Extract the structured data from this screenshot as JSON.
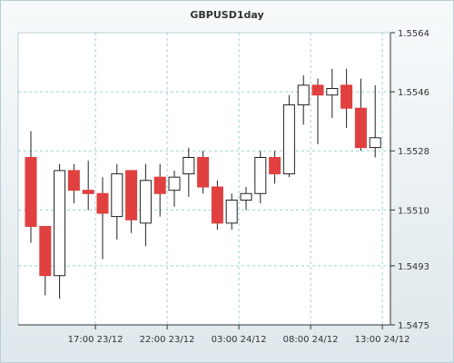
{
  "chart_data": {
    "type": "candlestick",
    "title": "GBPUSD1day",
    "xlabel": "",
    "ylabel": "",
    "ylim": [
      1.5475,
      1.5564
    ],
    "yticks": [
      "1.5564",
      "1.5546",
      "1.5528",
      "1.5510",
      "1.5493",
      "1.5475"
    ],
    "ytick_values": [
      1.5564,
      1.5546,
      1.5528,
      1.551,
      1.5493,
      1.5475
    ],
    "xticks": [
      {
        "label": "17:00 23/12",
        "index": 4.5
      },
      {
        "label": "22:00 23/12",
        "index": 9.5
      },
      {
        "label": "03:00 24/12",
        "index": 14.5
      },
      {
        "label": "08:00 24/12",
        "index": 19.5
      },
      {
        "label": "13:00 24/12",
        "index": 24.5
      }
    ],
    "grid": true,
    "colors": {
      "bear": "#e04040",
      "bull": "#ffffff",
      "outline": "#222222",
      "grid": "#9fd0d6"
    },
    "candles": [
      {
        "o": 1.5526,
        "h": 1.5534,
        "l": 1.55,
        "c": 1.5505
      },
      {
        "o": 1.5505,
        "h": 1.5505,
        "l": 1.5484,
        "c": 1.549
      },
      {
        "o": 1.549,
        "h": 1.5524,
        "l": 1.5483,
        "c": 1.5522
      },
      {
        "o": 1.5522,
        "h": 1.5524,
        "l": 1.5512,
        "c": 1.5516
      },
      {
        "o": 1.5516,
        "h": 1.5525,
        "l": 1.551,
        "c": 1.5515
      },
      {
        "o": 1.5515,
        "h": 1.552,
        "l": 1.5495,
        "c": 1.5509
      },
      {
        "o": 1.5508,
        "h": 1.5524,
        "l": 1.5501,
        "c": 1.5521
      },
      {
        "o": 1.5522,
        "h": 1.5522,
        "l": 1.5503,
        "c": 1.5507
      },
      {
        "o": 1.5506,
        "h": 1.5524,
        "l": 1.5499,
        "c": 1.5519
      },
      {
        "o": 1.552,
        "h": 1.5524,
        "l": 1.5508,
        "c": 1.5515
      },
      {
        "o": 1.5516,
        "h": 1.5522,
        "l": 1.5511,
        "c": 1.552
      },
      {
        "o": 1.5521,
        "h": 1.5529,
        "l": 1.5514,
        "c": 1.5526
      },
      {
        "o": 1.5526,
        "h": 1.5528,
        "l": 1.5515,
        "c": 1.5517
      },
      {
        "o": 1.5517,
        "h": 1.5519,
        "l": 1.5504,
        "c": 1.5506
      },
      {
        "o": 1.5506,
        "h": 1.5515,
        "l": 1.5504,
        "c": 1.5513
      },
      {
        "o": 1.5513,
        "h": 1.5517,
        "l": 1.551,
        "c": 1.5515
      },
      {
        "o": 1.5515,
        "h": 1.5528,
        "l": 1.5512,
        "c": 1.5526
      },
      {
        "o": 1.5526,
        "h": 1.5528,
        "l": 1.5518,
        "c": 1.5521
      },
      {
        "o": 1.5521,
        "h": 1.5545,
        "l": 1.552,
        "c": 1.5542
      },
      {
        "o": 1.5542,
        "h": 1.5551,
        "l": 1.5536,
        "c": 1.5548
      },
      {
        "o": 1.5548,
        "h": 1.555,
        "l": 1.553,
        "c": 1.5545
      },
      {
        "o": 1.5545,
        "h": 1.5553,
        "l": 1.5538,
        "c": 1.5547
      },
      {
        "o": 1.5548,
        "h": 1.5553,
        "l": 1.5535,
        "c": 1.5541
      },
      {
        "o": 1.5541,
        "h": 1.555,
        "l": 1.5528,
        "c": 1.5529
      },
      {
        "o": 1.5529,
        "h": 1.5548,
        "l": 1.5526,
        "c": 1.5532
      }
    ]
  }
}
